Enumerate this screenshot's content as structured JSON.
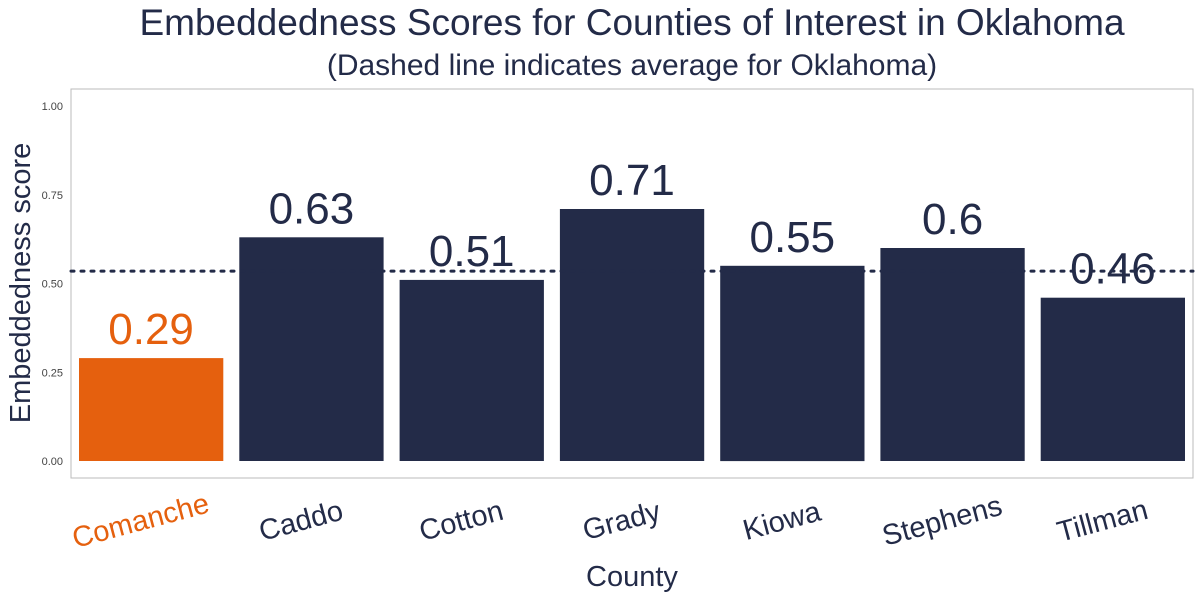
{
  "chart_data": {
    "type": "bar",
    "title": "Embeddedness Scores for Counties of Interest in Oklahoma",
    "subtitle": "(Dashed line indicates average for Oklahoma)",
    "xlabel": "County",
    "ylabel": "Embeddedness score",
    "categories": [
      "Comanche",
      "Caddo",
      "Cotton",
      "Grady",
      "Kiowa",
      "Stephens",
      "Tillman"
    ],
    "values": [
      0.29,
      0.63,
      0.51,
      0.71,
      0.55,
      0.6,
      0.46
    ],
    "value_labels": [
      "0.29",
      "0.63",
      "0.51",
      "0.71",
      "0.55",
      "0.6",
      "0.46"
    ],
    "yticks": [
      "0.00",
      "0.25",
      "0.50",
      "0.75",
      "1.00"
    ],
    "ytick_values": [
      0,
      0.25,
      0.5,
      0.75,
      1.0
    ],
    "ylim": [
      -0.05,
      1.05
    ],
    "reference_line": {
      "value": 0.535,
      "style": "dotted"
    },
    "highlight_category": "Comanche",
    "grid": false,
    "legend": "none",
    "colors": {
      "bar": "#232b48",
      "highlight": "#e5600e",
      "text": "#232b48",
      "axis_frame": "#bbbbbb"
    }
  }
}
